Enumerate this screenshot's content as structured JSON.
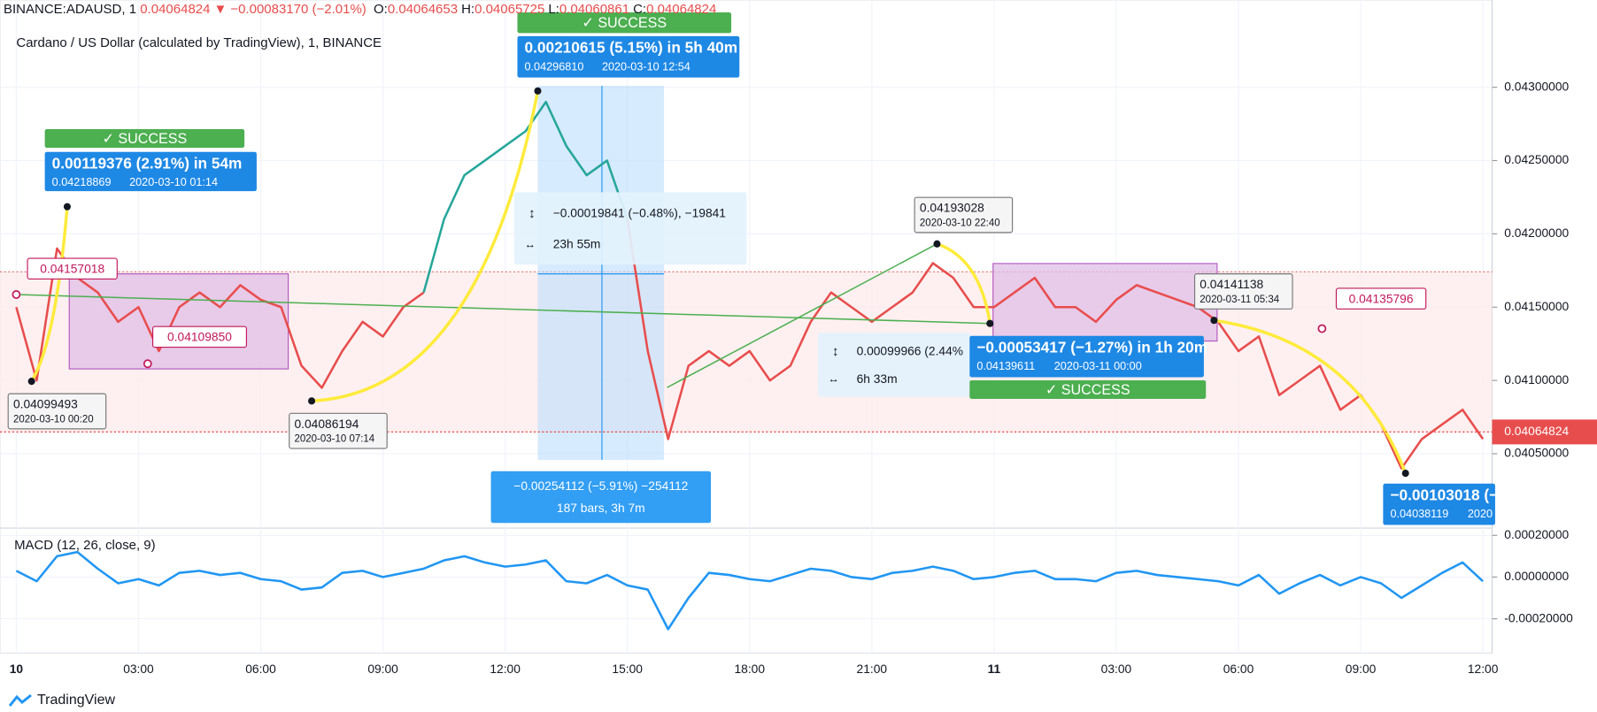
{
  "header": {
    "symbol": "BINANCE:ADAUSD, 1",
    "last": "0.04064824",
    "arrow": "▼",
    "change": "−0.00083170 (−2.01%)",
    "ohlc": [
      {
        "label": "O:",
        "value": "0.04064653"
      },
      {
        "label": "H:",
        "value": "0.04065725"
      },
      {
        "label": "L:",
        "value": "0.04060861"
      },
      {
        "label": "C:",
        "value": "0.04064824"
      }
    ]
  },
  "subtitle": "Cardano / US Dollar (calculated by TradingView), 1, BINANCE",
  "logo": "TradingView",
  "last_price_label": "0.04064824",
  "success_labels": [
    "✓ SUCCESS",
    "✓ SUCCESS",
    "✓ SUCCESS"
  ],
  "projections": [
    {
      "change": "0.00119376 (2.91%) in 54m",
      "price": "0.04218869",
      "time": "2020-03-10  01:14"
    },
    {
      "change": "0.00210615 (5.15%) in 5h 40m",
      "price": "0.04296810",
      "time": "2020-03-10  12:54"
    },
    {
      "change": "−0.00053417 (−1.27%) in 1h 20m",
      "price": "0.04139611",
      "time": "2020-03-11  00:00"
    },
    {
      "change": "−0.00103018 (−",
      "price": "0.04038119",
      "time": "2020"
    }
  ],
  "price_labels": [
    "0.04157018",
    "0.04109850",
    "0.04135796"
  ],
  "point_labels": [
    {
      "price": "0.04099493",
      "time": "2020-03-10 00:20"
    },
    {
      "price": "0.04086194",
      "time": "2020-03-10 07:14"
    },
    {
      "price": "0.04193028",
      "time": "2020-03-10 22:40"
    },
    {
      "price": "0.04141138",
      "time": "2020-03-11 05:34"
    }
  ],
  "measures": [
    {
      "change": "−0.00019841 (−0.48%), −19841",
      "duration": "23h 55m"
    },
    {
      "change": "−0.00254112 (−5.91%) −254112",
      "duration": "187 bars, 3h 7m"
    },
    {
      "change": "0.00099966 (2.44%",
      "duration": "6h 33m"
    }
  ],
  "chart_data": [
    {
      "type": "line",
      "categories": [
        "10",
        null,
        null,
        null,
        null,
        null,
        "03:00",
        null,
        null,
        null,
        null,
        null,
        "06:00",
        null,
        null,
        null,
        null,
        null,
        "09:00",
        null,
        null,
        null,
        null,
        null,
        "12:00",
        null,
        null,
        null,
        null,
        null,
        "15:00",
        null,
        null,
        null,
        null,
        null,
        "18:00",
        null,
        null,
        null,
        null,
        null,
        "21:00",
        null,
        null,
        null,
        null,
        null,
        "11",
        null,
        null,
        null,
        null,
        null,
        "03:00",
        null,
        null,
        null,
        null,
        null,
        "06:00",
        null,
        null,
        null,
        null,
        null,
        "09:00",
        null,
        null,
        null,
        null,
        null,
        "12:00"
      ],
      "series": [
        {
          "color": "#e84d4d",
          "values": [
            0.0415,
            0.041,
            0.0419,
            0.0417,
            0.0416,
            0.0414,
            0.0415,
            0.0412,
            0.0415,
            0.0416,
            0.0415,
            0.04165,
            0.04155,
            0.0415,
            0.0411,
            0.04095,
            0.0412,
            0.0414,
            0.0413,
            0.0415,
            0.0416,
            null,
            null,
            null,
            null,
            null,
            null,
            null,
            null,
            null,
            0.0421,
            0.0412,
            0.0406,
            0.0411,
            0.0412,
            0.0411,
            0.0412,
            0.041,
            0.0411,
            0.0414,
            0.0416,
            0.0415,
            0.0414,
            0.0415,
            0.0416,
            0.0418,
            0.0417,
            0.0415,
            0.0415,
            0.0416,
            0.0417,
            0.0415,
            0.0415,
            0.0414,
            0.04155,
            0.04165,
            0.0416,
            0.04155,
            0.0415,
            0.0414,
            0.0412,
            0.0413,
            0.0409,
            0.041,
            0.0411,
            0.0408,
            0.0409,
            0.0407,
            0.0404,
            0.0406,
            0.0407,
            0.0408,
            0.0406
          ]
        },
        {
          "color": "#26a69a",
          "values": [
            null,
            null,
            null,
            null,
            null,
            null,
            null,
            null,
            null,
            null,
            null,
            null,
            null,
            null,
            null,
            null,
            null,
            null,
            null,
            null,
            0.0416,
            0.0421,
            0.0424,
            0.0425,
            0.0426,
            0.0427,
            0.0429,
            0.0426,
            0.0424,
            0.0425,
            0.0421,
            null,
            null,
            null,
            null,
            null,
            null,
            null,
            null,
            null,
            null,
            null,
            null,
            null,
            null,
            null,
            null,
            null,
            null,
            null,
            null,
            null,
            null,
            null,
            null,
            null,
            null,
            null,
            null,
            null,
            null,
            null,
            null,
            null,
            null,
            null,
            null,
            null,
            null,
            null,
            null,
            null,
            null
          ]
        }
      ],
      "ylim": [
        0.04,
        0.04356
      ],
      "yticks": [
        {
          "value": 0.0405,
          "label": "0.04050000"
        },
        {
          "value": 0.041,
          "label": "0.04100000"
        },
        {
          "value": 0.0415,
          "label": "0.04150000"
        },
        {
          "value": 0.042,
          "label": "0.04200000"
        },
        {
          "value": 0.0425,
          "label": "0.04250000"
        },
        {
          "value": 0.043,
          "label": "0.04300000"
        }
      ],
      "grid": true
    },
    {
      "type": "line",
      "title": "MACD (12, 26, close, 9)",
      "color": "#2196f3",
      "values": [
        3e-05,
        -2e-05,
        0.0001,
        0.00012,
        4e-05,
        -3e-05,
        -1e-05,
        -4e-05,
        2e-05,
        3e-05,
        1e-05,
        2e-05,
        -1e-05,
        -2e-05,
        -6e-05,
        -5e-05,
        2e-05,
        3e-05,
        0,
        2e-05,
        4e-05,
        8e-05,
        0.0001,
        7e-05,
        5e-05,
        6e-05,
        8e-05,
        -2e-05,
        -3e-05,
        1e-05,
        -4e-05,
        -6e-05,
        -0.00025,
        -0.0001,
        2e-05,
        1e-05,
        -1e-05,
        -2e-05,
        1e-05,
        4e-05,
        3e-05,
        0,
        -1e-05,
        2e-05,
        3e-05,
        5e-05,
        3e-05,
        -1e-05,
        0,
        2e-05,
        3e-05,
        -1e-05,
        -1e-05,
        -2e-05,
        2e-05,
        3e-05,
        1e-05,
        0,
        -1e-05,
        -2e-05,
        -4e-05,
        1e-05,
        -8e-05,
        -3e-05,
        1e-05,
        -4e-05,
        0,
        -3e-05,
        -0.0001,
        -4e-05,
        2e-05,
        7e-05,
        -2e-05
      ],
      "ylim": [
        -0.00033,
        0.00023
      ],
      "yticks": [
        {
          "value": -0.0002,
          "label": "-0.00020000"
        },
        {
          "value": 0,
          "label": "0.00000000"
        },
        {
          "value": 0.0002,
          "label": "0.00020000"
        }
      ],
      "grid": true
    }
  ]
}
